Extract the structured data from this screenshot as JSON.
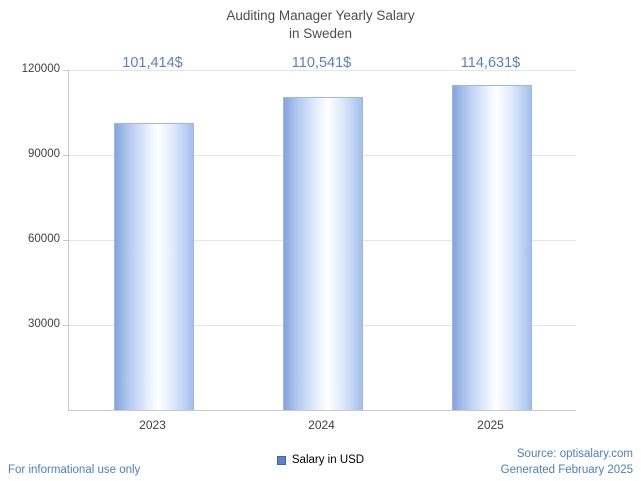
{
  "chart_data": {
    "type": "bar",
    "title_line1": "Auditing Manager Yearly Salary",
    "title_line2": "in Sweden",
    "categories": [
      "2023",
      "2024",
      "2025"
    ],
    "values": [
      101414,
      110541,
      114631
    ],
    "value_labels": [
      "101,414$",
      "110,541$",
      "114,631$"
    ],
    "series_name": "Salary in USD",
    "ylim": [
      0,
      120000
    ],
    "yticks": [
      30000,
      60000,
      90000,
      120000
    ],
    "grid": true,
    "legend_position": "bottom",
    "colors": {
      "value_label": "#5b7fc7",
      "title": "#4d4d4d",
      "axis_text": "#404040",
      "gridline": "#e4e4e4",
      "footer_blue": "#4d7ec8",
      "legend_swatch": "#5b83c8",
      "bar_edge": "#84a4dd",
      "bar_mid": "#ffffff"
    }
  },
  "legend": {
    "label": "Salary in USD"
  },
  "footer": {
    "disclaimer": "For informational use only",
    "source": "Source: optisalary.com",
    "generated": "Generated February 2025"
  }
}
